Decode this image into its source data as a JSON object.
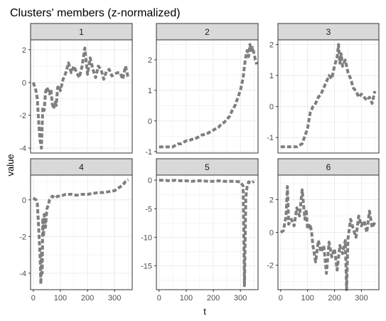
{
  "chart_data": {
    "type": "line",
    "title": "Clusters' members (z-normalized)",
    "xlabel": "t",
    "ylabel": "value",
    "grid": true,
    "line_color": "#7f7f7f",
    "strip_fill": "#d9d9d9",
    "panel_border": "#333333",
    "grid_color": "#ebebeb",
    "panels": [
      {
        "name": "1",
        "xlim": [
          -10,
          365
        ],
        "ylim": [
          -4.3,
          2.6
        ],
        "xticks": [],
        "xtick_labels": [],
        "yticks": [
          -4,
          -2,
          0,
          2
        ],
        "ytick_labels": [
          "-4",
          "-2",
          "0",
          "2"
        ],
        "series": [
          {
            "x": [
              0,
              10,
              15,
              20,
              25,
              30,
              35,
              40,
              45,
              50,
              55,
              60,
              65,
              70,
              75,
              80,
              85,
              90,
              95,
              100,
              110,
              120,
              130,
              140,
              150,
              160,
              170,
              180,
              190,
              200,
              210,
              220,
              230,
              240,
              250,
              260,
              270,
              280,
              290,
              300,
              310,
              320,
              330,
              340,
              350
            ],
            "y": [
              0,
              -0.5,
              -1.0,
              -2.4,
              -3.5,
              -4.0,
              -1.5,
              -1.7,
              -0.6,
              -0.3,
              -0.5,
              -0.7,
              -0.4,
              -1.3,
              -1.6,
              -1.2,
              -1.4,
              -0.3,
              -0.2,
              -0.5,
              0.2,
              0.6,
              1.2,
              0.6,
              1.0,
              0.6,
              0.3,
              1.0,
              2.1,
              0.5,
              1.5,
              0.8,
              0.3,
              1.0,
              0.8,
              0.2,
              0.7,
              0.8,
              0.4,
              0.5,
              0.6,
              0.6,
              0.2,
              1.0,
              0.3
            ]
          }
        ]
      },
      {
        "name": "2",
        "xlim": [
          -10,
          365
        ],
        "ylim": [
          -1.05,
          2.65
        ],
        "xticks": [],
        "xtick_labels": [],
        "yticks": [
          -1,
          0,
          1,
          2
        ],
        "ytick_labels": [
          "-1",
          "0",
          "1",
          "2"
        ],
        "series": [
          {
            "x": [
              0,
              10,
              20,
              30,
              40,
              50,
              60,
              70,
              80,
              90,
              100,
              110,
              120,
              130,
              140,
              150,
              160,
              170,
              180,
              190,
              200,
              210,
              220,
              230,
              240,
              250,
              260,
              270,
              280,
              290,
              300,
              310,
              315,
              320,
              325,
              330,
              335,
              340,
              345,
              350,
              355,
              360
            ],
            "y": [
              -0.85,
              -0.85,
              -0.85,
              -0.85,
              -0.85,
              -0.85,
              -0.8,
              -0.75,
              -0.75,
              -0.7,
              -0.65,
              -0.65,
              -0.6,
              -0.6,
              -0.55,
              -0.5,
              -0.45,
              -0.45,
              -0.4,
              -0.35,
              -0.3,
              -0.25,
              -0.2,
              -0.1,
              -0.05,
              0.05,
              0.15,
              0.35,
              0.5,
              0.75,
              1.0,
              1.4,
              1.8,
              2.1,
              2.3,
              2.1,
              2.5,
              2.3,
              2.4,
              2.2,
              2.0,
              1.85
            ]
          }
        ]
      },
      {
        "name": "3",
        "xlim": [
          -10,
          365
        ],
        "ylim": [
          -1.5,
          2.15
        ],
        "xticks": [],
        "xtick_labels": [],
        "yticks": [
          -1,
          0,
          1,
          2
        ],
        "ytick_labels": [
          "-1",
          "0",
          "1",
          "2"
        ],
        "series": [
          {
            "x": [
              0,
              20,
              40,
              60,
              80,
              100,
              110,
              120,
              130,
              140,
              150,
              160,
              170,
              180,
              190,
              200,
              210,
              215,
              220,
              225,
              230,
              240,
              250,
              260,
              270,
              280,
              290,
              300,
              310,
              320,
              330,
              340,
              350
            ],
            "y": [
              -1.3,
              -1.3,
              -1.3,
              -1.3,
              -1.2,
              -0.7,
              -0.2,
              0.0,
              0.1,
              0.3,
              0.4,
              0.6,
              0.8,
              1.0,
              0.9,
              1.3,
              1.6,
              2.0,
              1.4,
              1.7,
              1.3,
              1.5,
              1.1,
              0.9,
              0.6,
              0.5,
              0.3,
              0.4,
              0.3,
              0.2,
              0.3,
              0.1,
              0.5
            ]
          }
        ]
      },
      {
        "name": "4",
        "xlim": [
          -10,
          365
        ],
        "ylim": [
          -4.9,
          1.35
        ],
        "xticks": [
          0,
          100,
          200,
          300
        ],
        "xtick_labels": [
          "0",
          "100",
          "200",
          "300"
        ],
        "yticks": [
          -4,
          -2,
          0
        ],
        "ytick_labels": [
          "-4",
          "-2",
          "0"
        ],
        "series": [
          {
            "x": [
              0,
              10,
              15,
              20,
              25,
              28,
              30,
              33,
              35,
              38,
              40,
              45,
              50,
              55,
              60,
              70,
              80,
              90,
              100,
              120,
              140,
              160,
              180,
              200,
              220,
              240,
              260,
              280,
              300,
              310,
              320,
              330,
              340,
              350
            ],
            "y": [
              0.1,
              0,
              -0.2,
              -1.5,
              -3.0,
              -4.6,
              -2.8,
              -4.0,
              -1.0,
              -2.0,
              -0.8,
              -1.5,
              -0.5,
              -0.3,
              0,
              0.2,
              0.1,
              0.2,
              0.2,
              0.3,
              0.3,
              0.25,
              0.3,
              0.3,
              0.35,
              0.4,
              0.4,
              0.45,
              0.5,
              0.6,
              0.7,
              0.8,
              1.0,
              1.1
            ]
          }
        ]
      },
      {
        "name": "5",
        "xlim": [
          -10,
          365
        ],
        "ylim": [
          -19.2,
          0.9
        ],
        "xticks": [
          0,
          100,
          200,
          300
        ],
        "xtick_labels": [
          "0",
          "100",
          "200",
          "300"
        ],
        "yticks": [
          0,
          -5,
          -10,
          -15
        ],
        "ytick_labels": [
          "0",
          "-5",
          "-10",
          "-15"
        ],
        "series": [
          {
            "x": [
              0,
              20,
              40,
              60,
              80,
              100,
              120,
              140,
              160,
              180,
              200,
              220,
              240,
              260,
              280,
              300,
              310,
              315,
              320,
              325,
              330,
              340,
              350
            ],
            "y": [
              0,
              0,
              -0.1,
              0,
              -0.1,
              -0.1,
              -0.2,
              -0.1,
              -0.1,
              -0.2,
              -0.2,
              -0.1,
              -0.2,
              -0.2,
              -0.2,
              -0.3,
              -1.0,
              -18.5,
              -3.0,
              -1.0,
              -0.3,
              -0.5,
              -0.2
            ]
          }
        ]
      },
      {
        "name": "6",
        "xlim": [
          -10,
          365
        ],
        "ylim": [
          -3.5,
          3.5
        ],
        "xticks": [
          0,
          100,
          200,
          300
        ],
        "xtick_labels": [
          "0",
          "100",
          "200",
          "300"
        ],
        "yticks": [
          -2,
          0,
          2
        ],
        "ytick_labels": [
          "-2",
          "0",
          "2"
        ],
        "series": [
          {
            "x": [
              0,
              10,
              20,
              25,
              30,
              40,
              50,
              60,
              70,
              80,
              90,
              95,
              100,
              110,
              115,
              120,
              130,
              140,
              150,
              160,
              170,
              180,
              190,
              200,
              210,
              220,
              230,
              240,
              245,
              250,
              260,
              270,
              280,
              290,
              300,
              310,
              320,
              330,
              340,
              350
            ],
            "y": [
              0,
              0.1,
              1.0,
              2.8,
              0.5,
              0.8,
              0.4,
              1.5,
              1.0,
              2.6,
              0.8,
              1.4,
              0.2,
              0.5,
              0,
              -0.8,
              -1.8,
              -0.5,
              -1.2,
              -0.8,
              -2.5,
              -0.6,
              -1.5,
              -1.0,
              -2.3,
              -0.8,
              -1.3,
              -0.5,
              -3.5,
              -0.4,
              0.8,
              0.2,
              -0.3,
              1.0,
              0.4,
              0.7,
              0.0,
              1.3,
              0.3,
              0.6
            ]
          }
        ]
      }
    ]
  }
}
